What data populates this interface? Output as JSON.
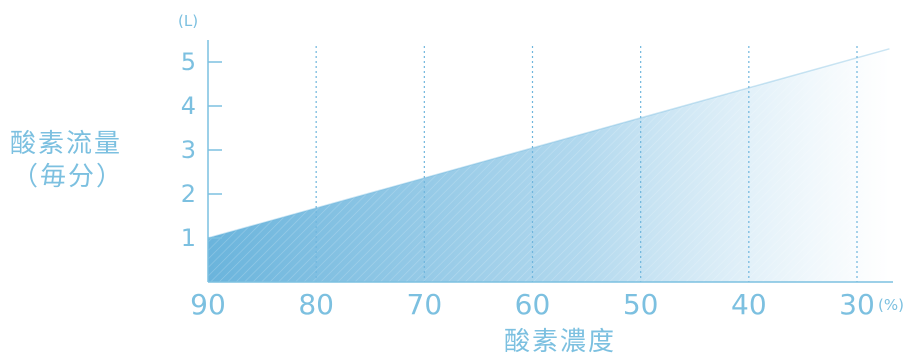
{
  "chart_data": {
    "type": "area",
    "title": "",
    "xlabel": "酸素濃度",
    "xunit": "(%)",
    "ylabel_line1": "酸素流量",
    "ylabel_line2": "（毎分）",
    "yunit": "(L)",
    "x_ticks": [
      "90",
      "80",
      "70",
      "60",
      "50",
      "40",
      "30"
    ],
    "y_ticks": [
      "1",
      "2",
      "3",
      "4",
      "5"
    ],
    "xlim": [
      90,
      27
    ],
    "ylim": [
      0,
      5.3
    ],
    "x_reversed": true,
    "grid": "vertical-dashed",
    "series": [
      {
        "x": [
          90,
          27
        ],
        "y": [
          1.0,
          5.3
        ]
      }
    ],
    "colors": {
      "fill_start": "#6ab4dc",
      "fill_end": "#ffffff",
      "axis": "#7cc0e0",
      "grid": "#6fb6dd"
    }
  }
}
